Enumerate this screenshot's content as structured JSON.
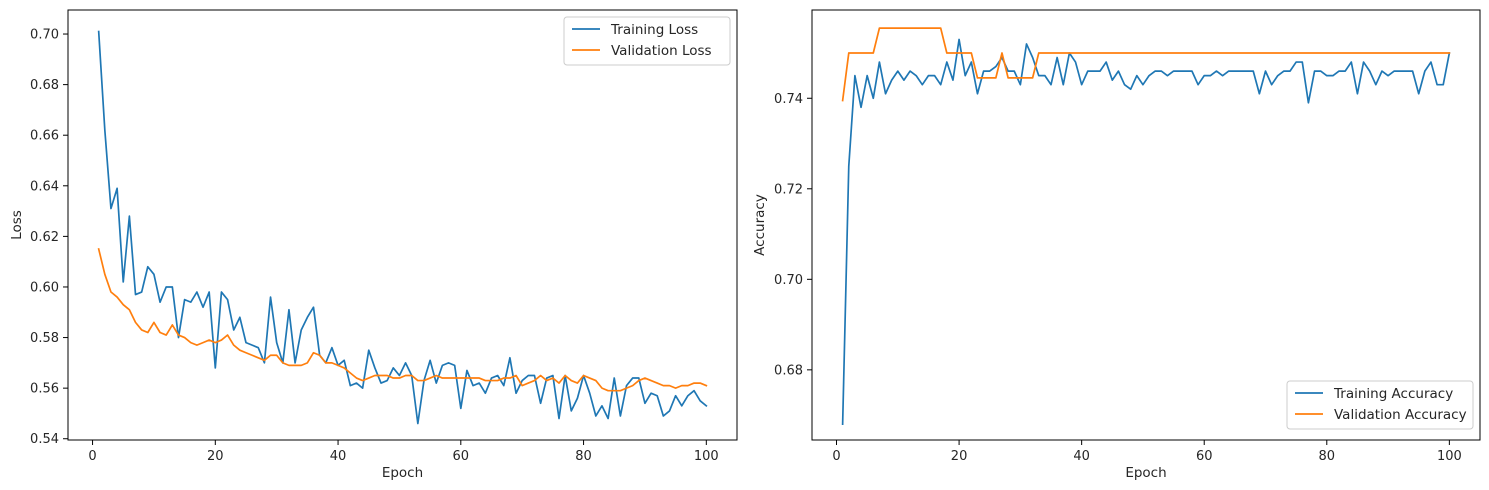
{
  "chart_data": [
    {
      "type": "line",
      "xlabel": "Epoch",
      "ylabel": "Loss",
      "xlim": [
        -4,
        105
      ],
      "ylim": [
        0.5395,
        0.7095
      ],
      "xticks": [
        0,
        20,
        40,
        60,
        80,
        100
      ],
      "yticks": [
        0.54,
        0.56,
        0.58,
        0.6,
        0.62,
        0.64,
        0.66,
        0.68,
        0.7
      ],
      "ytick_labels": [
        "0.54",
        "0.56",
        "0.58",
        "0.60",
        "0.62",
        "0.64",
        "0.66",
        "0.68",
        "0.70"
      ],
      "grid": false,
      "legend_position": "top-right",
      "series": [
        {
          "name": "Training Loss",
          "color": "#1f77b4",
          "x": [
            1,
            2,
            3,
            4,
            5,
            6,
            7,
            8,
            9,
            10,
            11,
            12,
            13,
            14,
            15,
            16,
            17,
            18,
            19,
            20,
            21,
            22,
            23,
            24,
            25,
            26,
            27,
            28,
            29,
            30,
            31,
            32,
            33,
            34,
            35,
            36,
            37,
            38,
            39,
            40,
            41,
            42,
            43,
            44,
            45,
            46,
            47,
            48,
            49,
            50,
            51,
            52,
            53,
            54,
            55,
            56,
            57,
            58,
            59,
            60,
            61,
            62,
            63,
            64,
            65,
            66,
            67,
            68,
            69,
            70,
            71,
            72,
            73,
            74,
            75,
            76,
            77,
            78,
            79,
            80,
            81,
            82,
            83,
            84,
            85,
            86,
            87,
            88,
            89,
            90,
            91,
            92,
            93,
            94,
            95,
            96,
            97,
            98,
            99,
            100
          ],
          "values": [
            0.701,
            0.662,
            0.631,
            0.639,
            0.602,
            0.628,
            0.597,
            0.598,
            0.608,
            0.605,
            0.594,
            0.6,
            0.6,
            0.58,
            0.595,
            0.594,
            0.598,
            0.592,
            0.598,
            0.568,
            0.598,
            0.595,
            0.583,
            0.588,
            0.578,
            0.577,
            0.576,
            0.57,
            0.596,
            0.578,
            0.57,
            0.591,
            0.57,
            0.583,
            0.588,
            0.592,
            0.573,
            0.57,
            0.576,
            0.569,
            0.571,
            0.561,
            0.562,
            0.56,
            0.575,
            0.568,
            0.562,
            0.563,
            0.568,
            0.565,
            0.57,
            0.565,
            0.546,
            0.563,
            0.571,
            0.562,
            0.569,
            0.57,
            0.569,
            0.552,
            0.567,
            0.561,
            0.562,
            0.558,
            0.564,
            0.565,
            0.561,
            0.572,
            0.558,
            0.563,
            0.565,
            0.565,
            0.554,
            0.564,
            0.565,
            0.548,
            0.565,
            0.551,
            0.556,
            0.565,
            0.558,
            0.549,
            0.553,
            0.548,
            0.564,
            0.549,
            0.561,
            0.564,
            0.564,
            0.554,
            0.558,
            0.557,
            0.549,
            0.551,
            0.557,
            0.553,
            0.557,
            0.559,
            0.555,
            0.553
          ]
        },
        {
          "name": "Validation Loss",
          "color": "#ff7f0e",
          "x": [
            1,
            2,
            3,
            4,
            5,
            6,
            7,
            8,
            9,
            10,
            11,
            12,
            13,
            14,
            15,
            16,
            17,
            18,
            19,
            20,
            21,
            22,
            23,
            24,
            25,
            26,
            27,
            28,
            29,
            30,
            31,
            32,
            33,
            34,
            35,
            36,
            37,
            38,
            39,
            40,
            41,
            42,
            43,
            44,
            45,
            46,
            47,
            48,
            49,
            50,
            51,
            52,
            53,
            54,
            55,
            56,
            57,
            58,
            59,
            60,
            61,
            62,
            63,
            64,
            65,
            66,
            67,
            68,
            69,
            70,
            71,
            72,
            73,
            74,
            75,
            76,
            77,
            78,
            79,
            80,
            81,
            82,
            83,
            84,
            85,
            86,
            87,
            88,
            89,
            90,
            91,
            92,
            93,
            94,
            95,
            96,
            97,
            98,
            99,
            100
          ],
          "values": [
            0.615,
            0.605,
            0.598,
            0.596,
            0.593,
            0.591,
            0.586,
            0.583,
            0.582,
            0.586,
            0.582,
            0.581,
            0.585,
            0.581,
            0.58,
            0.578,
            0.577,
            0.578,
            0.579,
            0.578,
            0.579,
            0.581,
            0.577,
            0.575,
            0.574,
            0.573,
            0.572,
            0.571,
            0.573,
            0.573,
            0.57,
            0.569,
            0.569,
            0.569,
            0.57,
            0.574,
            0.573,
            0.57,
            0.57,
            0.569,
            0.568,
            0.566,
            0.564,
            0.563,
            0.564,
            0.565,
            0.565,
            0.565,
            0.564,
            0.564,
            0.565,
            0.565,
            0.563,
            0.563,
            0.564,
            0.565,
            0.564,
            0.564,
            0.564,
            0.564,
            0.564,
            0.564,
            0.564,
            0.563,
            0.563,
            0.563,
            0.564,
            0.564,
            0.565,
            0.561,
            0.562,
            0.563,
            0.565,
            0.563,
            0.564,
            0.562,
            0.565,
            0.563,
            0.562,
            0.565,
            0.564,
            0.563,
            0.56,
            0.559,
            0.559,
            0.559,
            0.56,
            0.561,
            0.563,
            0.564,
            0.563,
            0.562,
            0.561,
            0.561,
            0.56,
            0.561,
            0.561,
            0.562,
            0.562,
            0.561
          ]
        }
      ]
    },
    {
      "type": "line",
      "xlabel": "Epoch",
      "ylabel": "Accuracy",
      "xlim": [
        -4,
        105
      ],
      "ylim": [
        0.6645,
        0.7595
      ],
      "xticks": [
        0,
        20,
        40,
        60,
        80,
        100
      ],
      "yticks": [
        0.68,
        0.7,
        0.72,
        0.74
      ],
      "ytick_labels": [
        "0.68",
        "0.70",
        "0.72",
        "0.74"
      ],
      "grid": false,
      "legend_position": "bottom-right",
      "series": [
        {
          "name": "Training Accuracy",
          "color": "#1f77b4",
          "x": [
            1,
            2,
            3,
            4,
            5,
            6,
            7,
            8,
            9,
            10,
            11,
            12,
            13,
            14,
            15,
            16,
            17,
            18,
            19,
            20,
            21,
            22,
            23,
            24,
            25,
            26,
            27,
            28,
            29,
            30,
            31,
            32,
            33,
            34,
            35,
            36,
            37,
            38,
            39,
            40,
            41,
            42,
            43,
            44,
            45,
            46,
            47,
            48,
            49,
            50,
            51,
            52,
            53,
            54,
            55,
            56,
            57,
            58,
            59,
            60,
            61,
            62,
            63,
            64,
            65,
            66,
            67,
            68,
            69,
            70,
            71,
            72,
            73,
            74,
            75,
            76,
            77,
            78,
            79,
            80,
            81,
            82,
            83,
            84,
            85,
            86,
            87,
            88,
            89,
            90,
            91,
            92,
            93,
            94,
            95,
            96,
            97,
            98,
            99,
            100
          ],
          "values": [
            0.668,
            0.725,
            0.745,
            0.738,
            0.745,
            0.74,
            0.748,
            0.741,
            0.744,
            0.746,
            0.744,
            0.746,
            0.745,
            0.743,
            0.745,
            0.745,
            0.743,
            0.748,
            0.744,
            0.753,
            0.745,
            0.748,
            0.741,
            0.746,
            0.746,
            0.747,
            0.749,
            0.746,
            0.746,
            0.743,
            0.752,
            0.749,
            0.745,
            0.745,
            0.743,
            0.749,
            0.743,
            0.75,
            0.748,
            0.743,
            0.746,
            0.746,
            0.746,
            0.748,
            0.744,
            0.746,
            0.743,
            0.742,
            0.745,
            0.743,
            0.745,
            0.746,
            0.746,
            0.745,
            0.746,
            0.746,
            0.746,
            0.746,
            0.743,
            0.745,
            0.745,
            0.746,
            0.745,
            0.746,
            0.746,
            0.746,
            0.746,
            0.746,
            0.741,
            0.746,
            0.743,
            0.745,
            0.746,
            0.746,
            0.748,
            0.748,
            0.739,
            0.746,
            0.746,
            0.745,
            0.745,
            0.746,
            0.746,
            0.748,
            0.741,
            0.748,
            0.746,
            0.743,
            0.746,
            0.745,
            0.746,
            0.746,
            0.746,
            0.746,
            0.741,
            0.746,
            0.748,
            0.743,
            0.743,
            0.75
          ]
        },
        {
          "name": "Validation Accuracy",
          "color": "#ff7f0e",
          "x": [
            1,
            2,
            3,
            4,
            5,
            6,
            7,
            8,
            9,
            10,
            11,
            12,
            13,
            14,
            15,
            16,
            17,
            18,
            19,
            20,
            21,
            22,
            23,
            24,
            25,
            26,
            27,
            28,
            29,
            30,
            31,
            32,
            33,
            34,
            35,
            36,
            37,
            38,
            39,
            40,
            41,
            42,
            43,
            44,
            45,
            46,
            47,
            48,
            49,
            50,
            51,
            52,
            53,
            54,
            55,
            56,
            57,
            58,
            59,
            60,
            61,
            62,
            63,
            64,
            65,
            66,
            67,
            68,
            69,
            70,
            71,
            72,
            73,
            74,
            75,
            76,
            77,
            78,
            79,
            80,
            81,
            82,
            83,
            84,
            85,
            86,
            87,
            88,
            89,
            90,
            91,
            92,
            93,
            94,
            95,
            96,
            97,
            98,
            99,
            100
          ],
          "values": [
            0.7395,
            0.75,
            0.75,
            0.75,
            0.75,
            0.75,
            0.7555,
            0.7555,
            0.7555,
            0.7555,
            0.7555,
            0.7555,
            0.7555,
            0.7555,
            0.7555,
            0.7555,
            0.7555,
            0.75,
            0.75,
            0.75,
            0.75,
            0.75,
            0.7445,
            0.7445,
            0.7445,
            0.7445,
            0.75,
            0.7445,
            0.7445,
            0.7445,
            0.7445,
            0.7445,
            0.75,
            0.75,
            0.75,
            0.75,
            0.75,
            0.75,
            0.75,
            0.75,
            0.75,
            0.75,
            0.75,
            0.75,
            0.75,
            0.75,
            0.75,
            0.75,
            0.75,
            0.75,
            0.75,
            0.75,
            0.75,
            0.75,
            0.75,
            0.75,
            0.75,
            0.75,
            0.75,
            0.75,
            0.75,
            0.75,
            0.75,
            0.75,
            0.75,
            0.75,
            0.75,
            0.75,
            0.75,
            0.75,
            0.75,
            0.75,
            0.75,
            0.75,
            0.75,
            0.75,
            0.75,
            0.75,
            0.75,
            0.75,
            0.75,
            0.75,
            0.75,
            0.75,
            0.75,
            0.75,
            0.75,
            0.75,
            0.75,
            0.75,
            0.75,
            0.75,
            0.75,
            0.75,
            0.75,
            0.75,
            0.75,
            0.75,
            0.75,
            0.75
          ]
        }
      ]
    }
  ]
}
